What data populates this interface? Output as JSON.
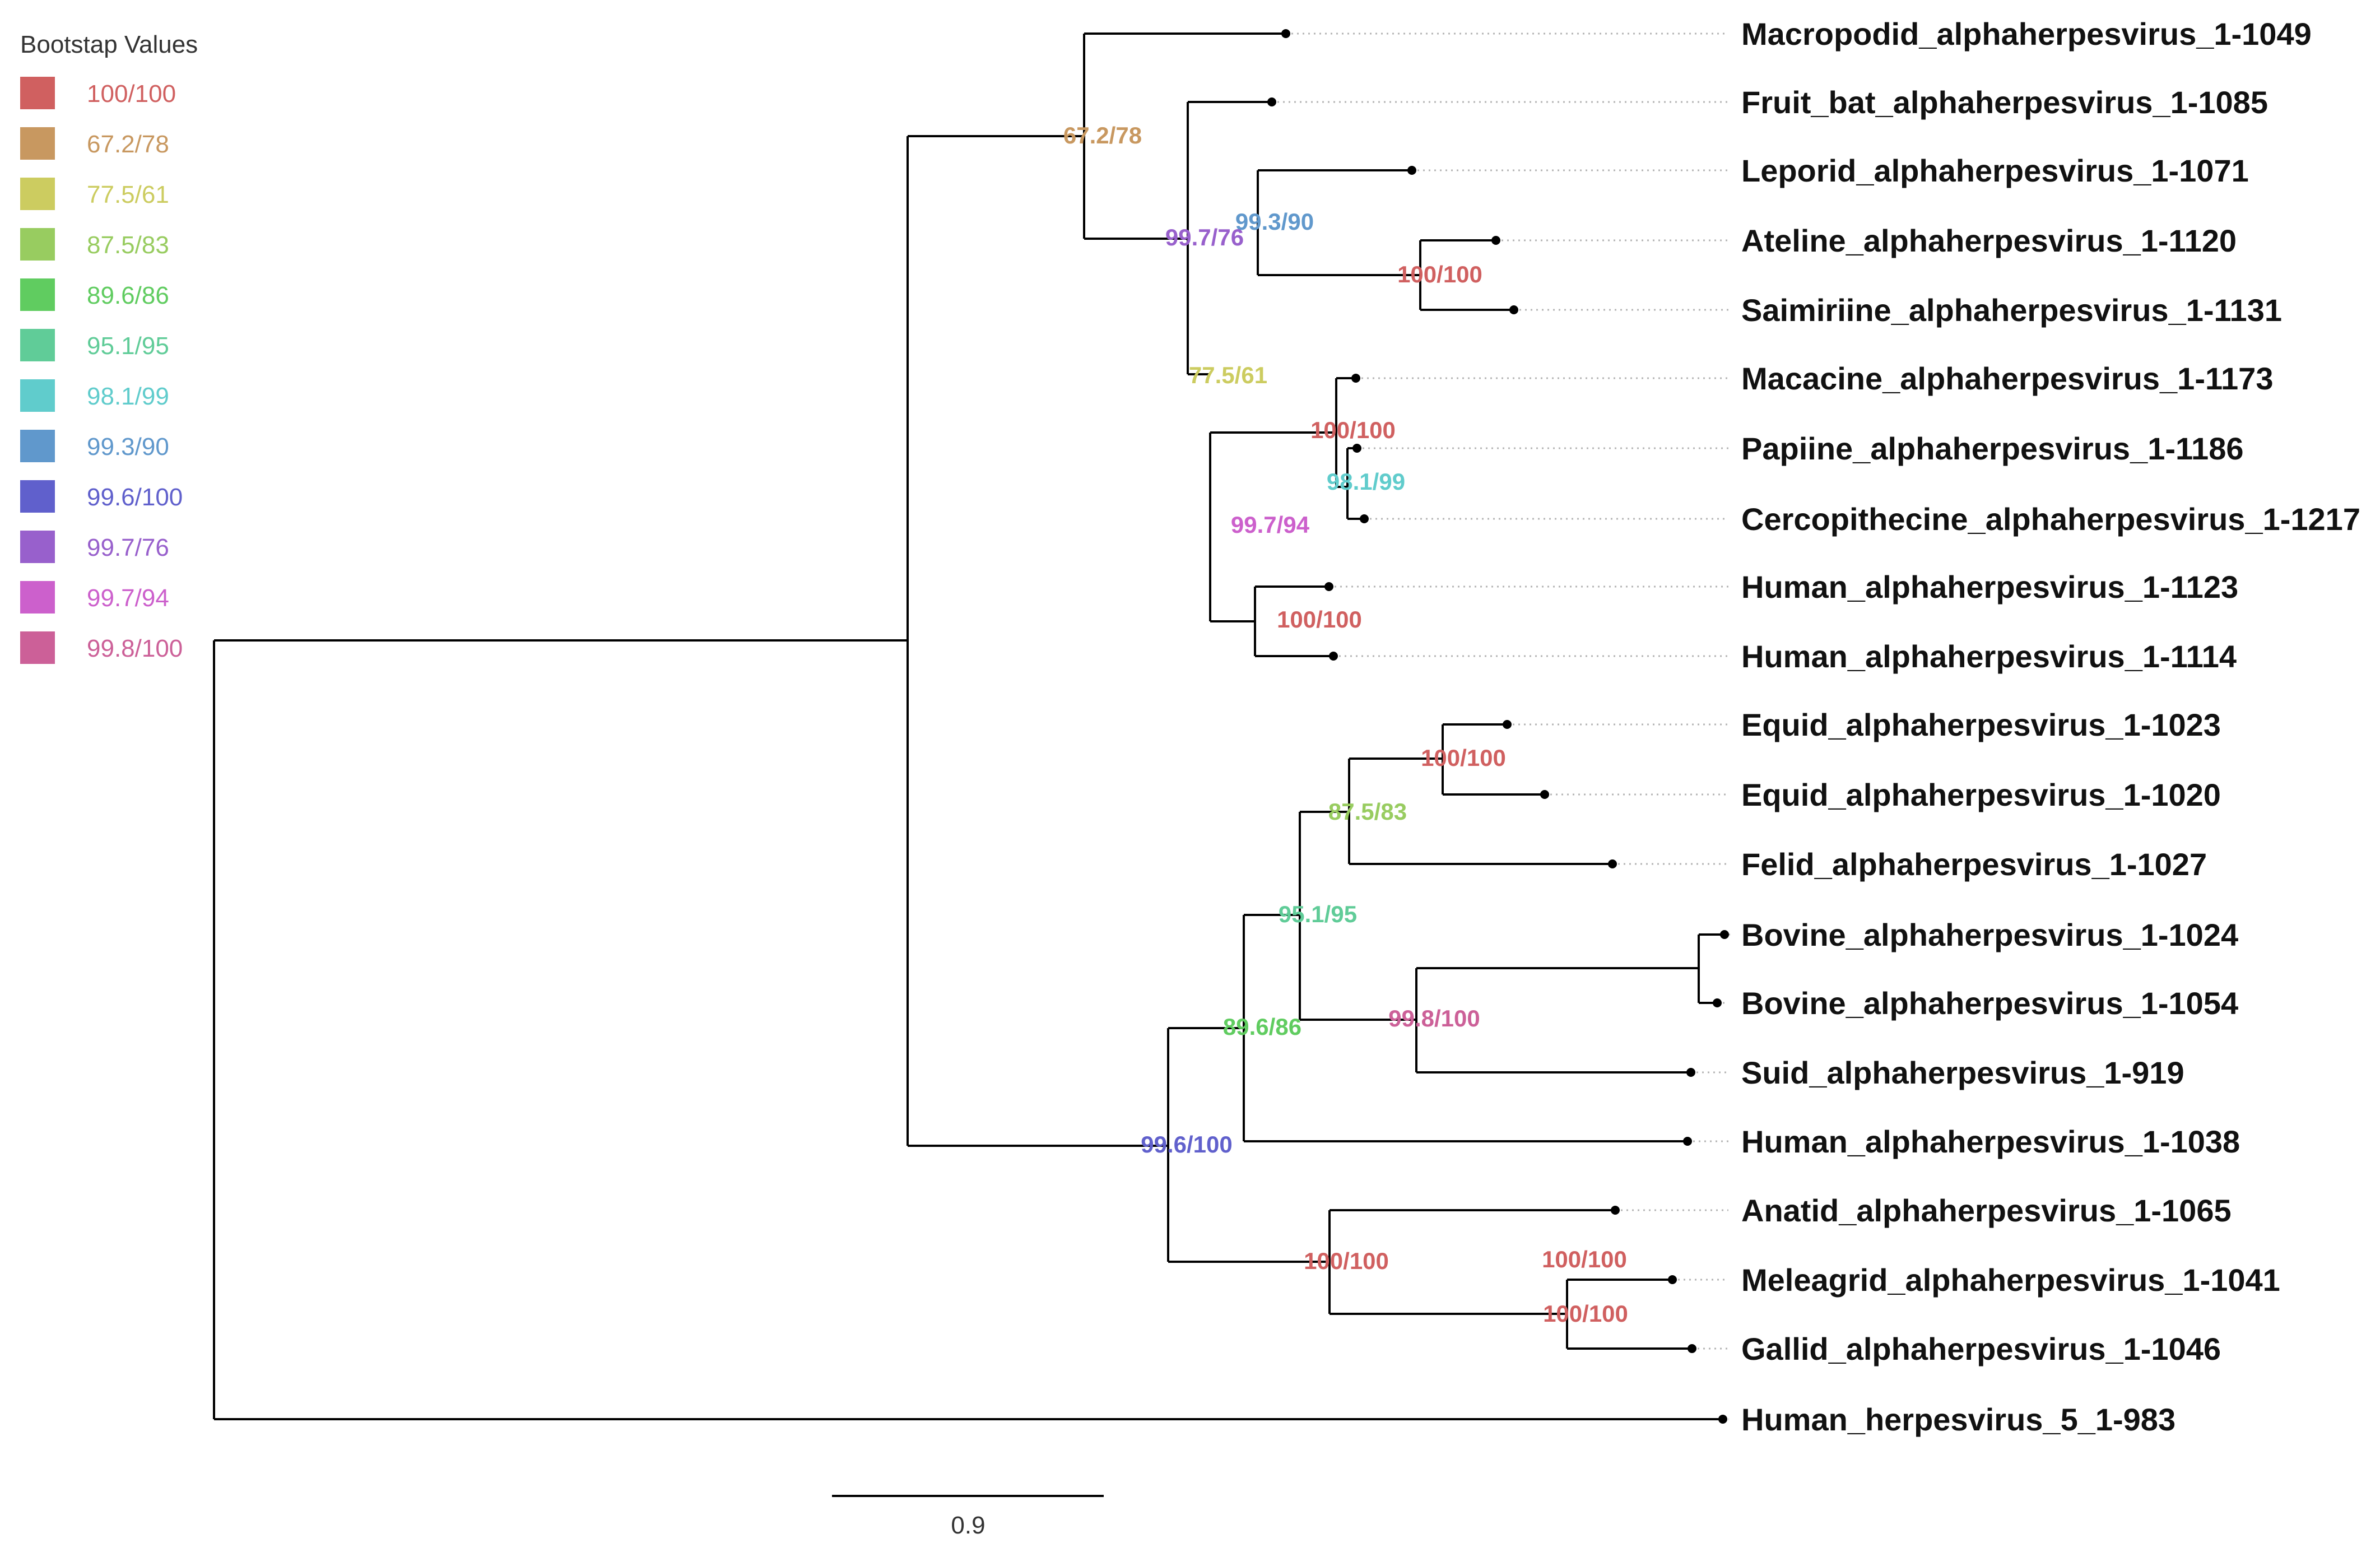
{
  "legend": {
    "title": "Bootstap Values",
    "items": [
      {
        "label": "100/100",
        "color": "#d06060"
      },
      {
        "label": "67.2/78",
        "color": "#c89860"
      },
      {
        "label": "77.5/61",
        "color": "#cccc60"
      },
      {
        "label": "87.5/83",
        "color": "#98cc60"
      },
      {
        "label": "89.6/86",
        "color": "#60cc60"
      },
      {
        "label": "95.1/95",
        "color": "#60cc98"
      },
      {
        "label": "98.1/99",
        "color": "#60cccc"
      },
      {
        "label": "99.3/90",
        "color": "#6098cc"
      },
      {
        "label": "99.6/100",
        "color": "#6060cc"
      },
      {
        "label": "99.7/76",
        "color": "#9860cc"
      },
      {
        "label": "99.7/94",
        "color": "#cc60cc"
      },
      {
        "label": "99.8/100",
        "color": "#cc6098"
      }
    ]
  },
  "tips": [
    "Macropodid_alphaherpesvirus_1-1049",
    "Fruit_bat_alphaherpesvirus_1-1085",
    "Leporid_alphaherpesvirus_1-1071",
    "Ateline_alphaherpesvirus_1-1120",
    "Saimiriine_alphaherpesvirus_1-1131",
    "Macacine_alphaherpesvirus_1-1173",
    "Papiine_alphaherpesvirus_1-1186",
    "Cercopithecine_alphaherpesvirus_1-1217",
    "Human_alphaherpesvirus_1-1123",
    "Human_alphaherpesvirus_1-1114",
    "Equid_alphaherpesvirus_1-1023",
    "Equid_alphaherpesvirus_1-1020",
    "Felid_alphaherpesvirus_1-1027",
    "Bovine_alphaherpesvirus_1-1024",
    "Bovine_alphaherpesvirus_1-1054",
    "Suid_alphaherpesvirus_1-919",
    "Human_alphaherpesvirus_1-1038",
    "Anatid_alphaherpesvirus_1-1065",
    "Meleagrid_alphaherpesvirus_1-1041",
    "Gallid_alphaherpesvirus_1-1046",
    "Human_herpesvirus_5_1-983"
  ],
  "supports": [
    {
      "label": "67.2/78",
      "color": "#c89860"
    },
    {
      "label": "99.3/90",
      "color": "#6098cc"
    },
    {
      "label": "99.7/76",
      "color": "#9860cc"
    },
    {
      "label": "100/100",
      "color": "#d06060"
    },
    {
      "label": "77.5/61",
      "color": "#cccc60"
    },
    {
      "label": "100/100",
      "color": "#d06060"
    },
    {
      "label": "98.1/99",
      "color": "#60cccc"
    },
    {
      "label": "99.7/94",
      "color": "#cc60cc"
    },
    {
      "label": "100/100",
      "color": "#d06060"
    },
    {
      "label": "100/100",
      "color": "#d06060"
    },
    {
      "label": "87.5/83",
      "color": "#98cc60"
    },
    {
      "label": "95.1/95",
      "color": "#60cc98"
    },
    {
      "label": "100/100",
      "color": "#d06060"
    },
    {
      "label": "99.8/100",
      "color": "#cc6098"
    },
    {
      "label": "89.6/86",
      "color": "#60cc60"
    },
    {
      "label": "99.6/100",
      "color": "#6060cc"
    },
    {
      "label": "100/100",
      "color": "#d06060"
    },
    {
      "label": "100/100",
      "color": "#d06060"
    }
  ],
  "scale_bar": {
    "label": "0.9"
  }
}
